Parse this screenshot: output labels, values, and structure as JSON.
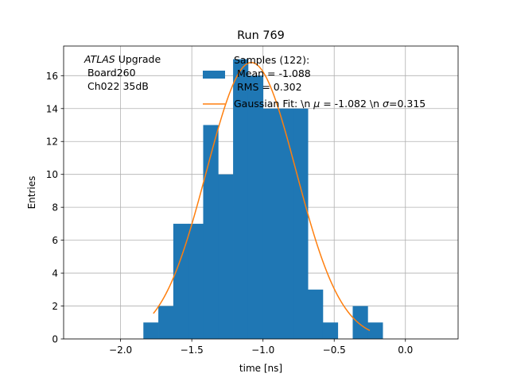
{
  "chart_data": {
    "type": "bar",
    "title": "Run 769",
    "xlabel": "time [ns]",
    "ylabel": "Entries",
    "xlim": [
      -2.4,
      0.37
    ],
    "ylim": [
      0,
      17.8
    ],
    "grid": true,
    "x_ticks": [
      -2.0,
      -1.5,
      -1.0,
      -0.5,
      0.0
    ],
    "x_tick_labels": [
      "−2.0",
      "−1.5",
      "−1.0",
      "−0.5",
      "0.0"
    ],
    "y_ticks": [
      0,
      2,
      4,
      6,
      8,
      10,
      12,
      14,
      16
    ],
    "y_tick_labels": [
      "0",
      "2",
      "4",
      "6",
      "8",
      "10",
      "12",
      "14",
      "16"
    ],
    "histogram": {
      "name": "Samples (122):",
      "color": "#1f77b4",
      "bins": [
        {
          "x0": -1.84,
          "x1": -1.735,
          "value": 1
        },
        {
          "x0": -1.735,
          "x1": -1.63,
          "value": 2
        },
        {
          "x0": -1.63,
          "x1": -1.525,
          "value": 7
        },
        {
          "x0": -1.525,
          "x1": -1.42,
          "value": 7
        },
        {
          "x0": -1.42,
          "x1": -1.315,
          "value": 13
        },
        {
          "x0": -1.315,
          "x1": -1.21,
          "value": 10
        },
        {
          "x0": -1.21,
          "x1": -1.105,
          "value": 17
        },
        {
          "x0": -1.105,
          "x1": -1.0,
          "value": 16
        },
        {
          "x0": -1.0,
          "x1": -0.895,
          "value": 14
        },
        {
          "x0": -0.895,
          "x1": -0.79,
          "value": 14
        },
        {
          "x0": -0.79,
          "x1": -0.685,
          "value": 14
        },
        {
          "x0": -0.685,
          "x1": -0.58,
          "value": 3
        },
        {
          "x0": -0.58,
          "x1": -0.475,
          "value": 1
        },
        {
          "x0": -0.475,
          "x1": -0.37,
          "value": 0
        },
        {
          "x0": -0.37,
          "x1": -0.265,
          "value": 2
        },
        {
          "x0": -0.265,
          "x1": -0.16,
          "value": 1
        }
      ]
    },
    "fit": {
      "color": "#ff7f0e",
      "mu": -1.082,
      "sigma": 0.315,
      "amplitude": 16.8,
      "x_range": [
        -1.77,
        -0.25
      ]
    },
    "legend": {
      "position": "top-center",
      "hist_lines": [
        "Samples (122):",
        " Mean = -1.088",
        " RMS = 0.302"
      ],
      "fit_label_prefix": "Gaussian Fit: \\n ",
      "fit_mu_symbol": "μ",
      "fit_mu_value": " = -1.082 \\n ",
      "fit_sigma_symbol": "σ",
      "fit_sigma_value": "=0.315"
    },
    "annotation": {
      "position": "top-left",
      "atlas": "ATLAS",
      "upgrade": " Upgrade",
      "line2": " Board260",
      "line3": " Ch022 35dB"
    }
  }
}
